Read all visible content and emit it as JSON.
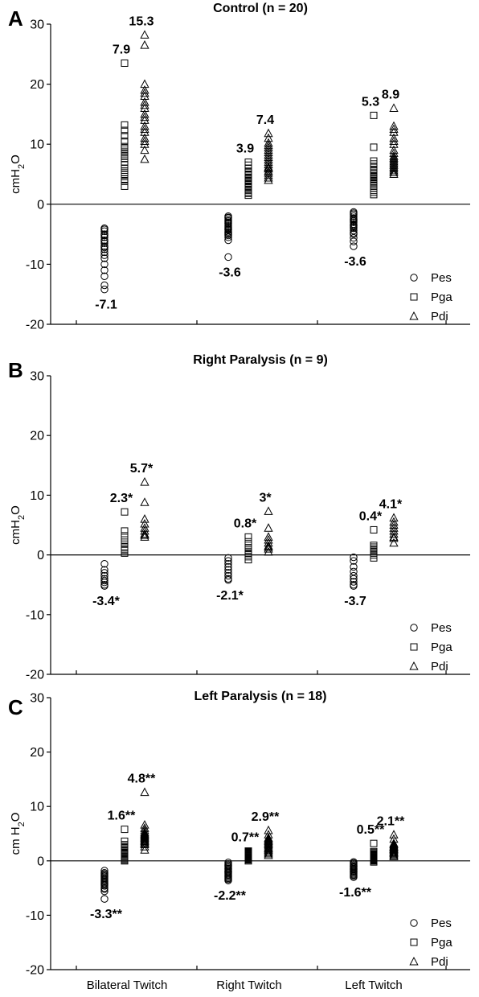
{
  "chart_data": [
    {
      "type": "scatter",
      "panel": "A",
      "title": "Control (n = 20)",
      "ylabel": "cmH2O",
      "ylim": [
        -20,
        30
      ],
      "yticks": [
        -20,
        -10,
        0,
        10,
        20,
        30
      ],
      "categories": [
        "Bilateral Twitch",
        "Right Twitch",
        "Left Twitch"
      ],
      "legend": [
        "Pes",
        "Pga",
        "Pdi"
      ],
      "legend_position": "bottom-right",
      "series": [
        {
          "name": "Pes",
          "marker": "circle",
          "labels": [
            "-7.1",
            "-3.6",
            "-3.6"
          ],
          "values": [
            [
              -4,
              -4.5,
              -5,
              -5.5,
              -6,
              -6.5,
              -7,
              -7.5,
              -8,
              -9,
              -10,
              -11,
              -12,
              -13.5,
              -14.2,
              -4.2,
              -5.2,
              -6.2,
              -7.2,
              -8.5
            ],
            [
              -2,
              -2.3,
              -2.6,
              -3,
              -3.3,
              -3.6,
              -4,
              -4.3,
              -4.6,
              -5,
              -5.5,
              -6,
              -8.8,
              -2.8,
              -3.8,
              -4.8,
              -2.2,
              -3.2,
              -4.2,
              -5.2
            ],
            [
              -1.3,
              -1.7,
              -2,
              -2.3,
              -2.6,
              -3,
              -3.3,
              -3.6,
              -4,
              -4.4,
              -5,
              -5.6,
              -6.2,
              -7,
              -2.8,
              -3.8,
              -4.8,
              -1.5,
              -2.5,
              -3.5
            ]
          ]
        },
        {
          "name": "Pga",
          "marker": "square",
          "labels": [
            "7.9",
            "3.9",
            "5.3"
          ],
          "values": [
            [
              3,
              3.8,
              4.6,
              5.3,
              6,
              7,
              8,
              8.8,
              9.6,
              10.5,
              11.4,
              12.3,
              13.2,
              23.5,
              4.2,
              5,
              6.6,
              7.6,
              8.4,
              9.2
            ],
            [
              1.5,
              2,
              2.5,
              3,
              3.5,
              4,
              4.5,
              5,
              5.5,
              6,
              6.5,
              7,
              1.8,
              2.3,
              2.8,
              3.3,
              3.8,
              4.3,
              4.8,
              5.3
            ],
            [
              1.6,
              2.3,
              3,
              3.8,
              4.6,
              5.5,
              6.3,
              7.2,
              9.5,
              14.8,
              2,
              2.7,
              3.4,
              4.2,
              5,
              5.8,
              6.7,
              3.6,
              4.4,
              5.2
            ]
          ]
        },
        {
          "name": "Pdi",
          "marker": "triangle",
          "labels": [
            "15.3",
            "7.4",
            "8.9"
          ],
          "values": [
            [
              7.5,
              9,
              10,
              11,
              12,
              13,
              14,
              15,
              16,
              17,
              18,
              18.5,
              19,
              20,
              26.5,
              28.2,
              10.5,
              12.5,
              14.5,
              16.5
            ],
            [
              4,
              4.8,
              5.5,
              6.2,
              7,
              7.8,
              8.6,
              9.4,
              10.2,
              11,
              11.8,
              4.4,
              5.2,
              5.9,
              6.6,
              7.4,
              8.2,
              9,
              9.8,
              6
            ],
            [
              5,
              5.6,
              6.2,
              6.8,
              7.4,
              8,
              9,
              10,
              10.5,
              11,
              12,
              13,
              16,
              5.3,
              5.9,
              6.5,
              7.1,
              7.7,
              8.5,
              12.5
            ]
          ]
        }
      ]
    },
    {
      "type": "scatter",
      "panel": "B",
      "title": "Right Paralysis (n = 9)",
      "ylabel": "cmH2O",
      "ylim": [
        -20,
        30
      ],
      "yticks": [
        -20,
        -10,
        0,
        10,
        20,
        30
      ],
      "categories": [
        "Bilateral Twitch",
        "Right Twitch",
        "Left Twitch"
      ],
      "legend": [
        "Pes",
        "Pga",
        "Pdi"
      ],
      "legend_position": "bottom-right",
      "series": [
        {
          "name": "Pes",
          "marker": "circle",
          "labels": [
            "-3.4*",
            "-2.1*",
            "-3.7"
          ],
          "values": [
            [
              -1.5,
              -2.5,
              -3,
              -3.5,
              -4,
              -4.3,
              -4.6,
              -5,
              -5.2
            ],
            [
              -0.5,
              -1,
              -1.5,
              -2,
              -2.5,
              -3,
              -3.5,
              -4,
              -4.2
            ],
            [
              -0.4,
              -1,
              -2,
              -2.8,
              -3.5,
              -4,
              -4.5,
              -5,
              -5.2
            ]
          ]
        },
        {
          "name": "Pga",
          "marker": "square",
          "labels": [
            "2.3*",
            "0.8*",
            "0.4*"
          ],
          "values": [
            [
              0.3,
              0.8,
              1.3,
              1.8,
              2.5,
              3.2,
              4,
              7.2,
              1
            ],
            [
              -0.8,
              -0.3,
              0,
              0.3,
              0.8,
              1.2,
              1.6,
              2.2,
              3
            ],
            [
              -0.5,
              0,
              0.3,
              0.6,
              1,
              1.3,
              1.6,
              4.2,
              0.8
            ]
          ]
        },
        {
          "name": "Pdi",
          "marker": "triangle",
          "labels": [
            "5.7*",
            "3*",
            "4.1*"
          ],
          "values": [
            [
              3,
              3.5,
              4,
              4.5,
              5.2,
              6,
              8.8,
              12.2,
              3.3
            ],
            [
              0.5,
              1,
              1.5,
              2,
              2.5,
              3,
              4.5,
              7.3,
              1.3
            ],
            [
              2,
              2.8,
              3.5,
              4,
              4.5,
              5,
              5.5,
              6.2,
              3
            ]
          ]
        }
      ]
    },
    {
      "type": "scatter",
      "panel": "C",
      "title": "Left Paralysis (n = 18)",
      "ylabel": "cm H2O",
      "ylim": [
        -20,
        30
      ],
      "yticks": [
        -20,
        -10,
        0,
        10,
        20,
        30
      ],
      "categories": [
        "Bilateral Twitch",
        "Right Twitch",
        "Left Twitch"
      ],
      "legend": [
        "Pes",
        "Pga",
        "Pdi"
      ],
      "legend_position": "bottom-right",
      "series": [
        {
          "name": "Pes",
          "marker": "circle",
          "labels": [
            "-3.3**",
            "-2.2**",
            "-1.6**"
          ],
          "values": [
            [
              -1.8,
              -2.2,
              -2.6,
              -3,
              -3.4,
              -3.8,
              -4.2,
              -4.6,
              -5,
              -5.6,
              -7,
              -2.4,
              -2.8,
              -3.2,
              -3.6,
              -4,
              -4.4,
              -5.2
            ],
            [
              -0.3,
              -0.8,
              -1.2,
              -1.6,
              -2,
              -2.4,
              -2.8,
              -3.2,
              -3.6,
              -1,
              -1.4,
              -1.8,
              -2.2,
              -2.6,
              -3,
              -3.4,
              -0.6,
              -2
            ],
            [
              -0.2,
              -0.6,
              -1,
              -1.4,
              -1.8,
              -2.2,
              -2.6,
              -3,
              -0.4,
              -0.8,
              -1.2,
              -1.6,
              -2,
              -2.4,
              -2.8,
              -1.1,
              -1.5,
              -1.9
            ]
          ]
        },
        {
          "name": "Pga",
          "marker": "square",
          "labels": [
            "1.6**",
            "0.7**",
            "0.5**"
          ],
          "values": [
            [
              0,
              0.4,
              0.8,
              1.2,
              1.6,
              2,
              2.5,
              3,
              3.6,
              5.8,
              0.6,
              1,
              1.4,
              1.8,
              2.2,
              2.7,
              0.2,
              1.5
            ],
            [
              0,
              0.3,
              0.6,
              0.9,
              1.2,
              1.5,
              1.8,
              0.2,
              0.5,
              0.8,
              1.1,
              1.4,
              1.7,
              0.4,
              0.7,
              1,
              1.3,
              1.6
            ],
            [
              -0.2,
              0.1,
              0.4,
              0.7,
              1,
              1.3,
              1.7,
              3.2,
              0,
              0.3,
              0.6,
              0.9,
              1.2,
              1.5,
              0.2,
              0.5,
              0.8,
              1.1
            ]
          ]
        },
        {
          "name": "Pdi",
          "marker": "triangle",
          "labels": [
            "4.8**",
            "2.9**",
            "2.1**"
          ],
          "values": [
            [
              2,
              2.6,
              3.2,
              3.6,
              4,
              4.4,
              4.8,
              5.2,
              5.6,
              6,
              6.6,
              12.6,
              3,
              3.4,
              3.8,
              4.2,
              4.6,
              5
            ],
            [
              1,
              1.5,
              2,
              2.5,
              3,
              3.4,
              3.8,
              4.2,
              4.8,
              5.6,
              1.3,
              1.8,
              2.3,
              2.8,
              3.2,
              3.6,
              4,
              2.2
            ],
            [
              0.8,
              1.2,
              1.6,
              2,
              2.4,
              2.8,
              3.2,
              4,
              4.8,
              1,
              1.4,
              1.8,
              2.2,
              2.6,
              3,
              1.5,
              2.1,
              2.5
            ]
          ]
        }
      ]
    }
  ]
}
